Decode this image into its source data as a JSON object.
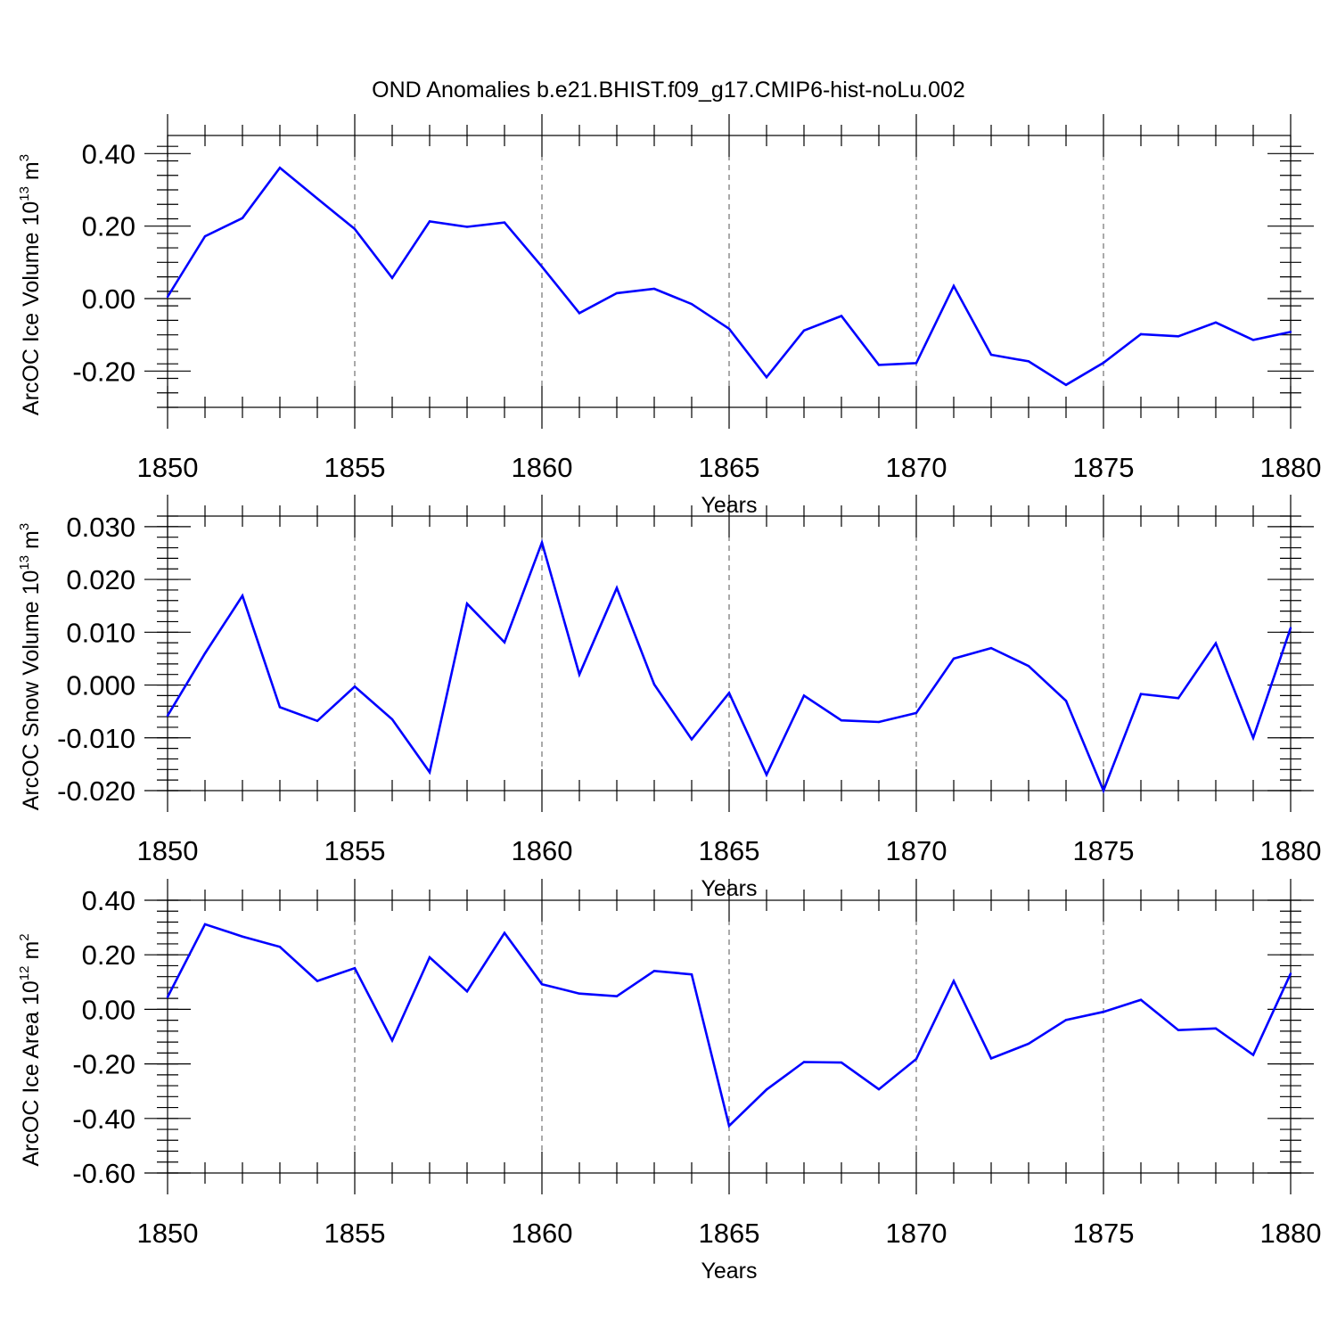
{
  "figure": {
    "title": "OND Anomalies b.e21.BHIST.f09_g17.CMIP6-hist-noLu.002"
  },
  "chart_data": [
    {
      "type": "line",
      "name": "ice-volume",
      "title": "OND Anomalies b.e21.BHIST.f09_g17.CMIP6-hist-noLu.002",
      "xlabel": "Years",
      "ylabel": {
        "text": "ArcOC Ice Volume 10",
        "exp": "13",
        "unit": " m",
        "unit_exp": "3"
      },
      "xlim": [
        1850,
        1880
      ],
      "ylim": [
        -0.3,
        0.45
      ],
      "x_major_ticks": [
        1850,
        1855,
        1860,
        1865,
        1870,
        1875,
        1880
      ],
      "x_tick_labels": [
        "1850",
        "1855",
        "1860",
        "1865",
        "1870",
        "1875",
        "1880"
      ],
      "y_major_ticks": [
        -0.2,
        0.0,
        0.2,
        0.4
      ],
      "y_tick_labels": [
        "-0.20",
        "0.00",
        "0.20",
        "0.40"
      ],
      "y_minor_step": 0.04,
      "grid": "vertical dashed at major x ticks",
      "series": [
        {
          "name": "ArcOC Ice Volume",
          "color": "#0000ff",
          "x": [
            1850,
            1851,
            1852,
            1853,
            1854,
            1855,
            1856,
            1857,
            1858,
            1859,
            1860,
            1861,
            1862,
            1863,
            1864,
            1865,
            1866,
            1867,
            1868,
            1869,
            1870,
            1871,
            1872,
            1873,
            1874,
            1875,
            1876,
            1877,
            1878,
            1879,
            1880
          ],
          "values": [
            0.005,
            0.172,
            0.222,
            0.361,
            0.276,
            0.192,
            0.057,
            0.213,
            0.198,
            0.21,
            0.088,
            -0.04,
            0.015,
            0.027,
            -0.015,
            -0.083,
            -0.217,
            -0.088,
            -0.048,
            -0.183,
            -0.178,
            0.035,
            -0.155,
            -0.173,
            -0.238,
            -0.177,
            -0.098,
            -0.104,
            -0.066,
            -0.114,
            -0.092
          ]
        }
      ]
    },
    {
      "type": "line",
      "name": "snow-volume",
      "xlabel": "Years",
      "ylabel": {
        "text": "ArcOC Snow Volume 10",
        "exp": "13",
        "unit": " m",
        "unit_exp": "3"
      },
      "xlim": [
        1850,
        1880
      ],
      "ylim": [
        -0.02,
        0.032
      ],
      "x_major_ticks": [
        1850,
        1855,
        1860,
        1865,
        1870,
        1875,
        1880
      ],
      "x_tick_labels": [
        "1850",
        "1855",
        "1860",
        "1865",
        "1870",
        "1875",
        "1880"
      ],
      "y_major_ticks": [
        -0.02,
        -0.01,
        0.0,
        0.01,
        0.02,
        0.03
      ],
      "y_tick_labels": [
        "-0.020",
        "-0.010",
        "0.000",
        "0.010",
        "0.020",
        "0.030"
      ],
      "y_minor_step": 0.002,
      "grid": "vertical dashed at major x ticks",
      "series": [
        {
          "name": "ArcOC Snow Volume",
          "color": "#0000ff",
          "x": [
            1850,
            1851,
            1852,
            1853,
            1854,
            1855,
            1856,
            1857,
            1858,
            1859,
            1860,
            1861,
            1862,
            1863,
            1864,
            1865,
            1866,
            1867,
            1868,
            1869,
            1870,
            1871,
            1872,
            1873,
            1874,
            1875,
            1876,
            1877,
            1878,
            1879,
            1880
          ],
          "values": [
            -0.0058,
            0.006,
            0.0169,
            -0.0042,
            -0.0068,
            -0.0003,
            -0.0065,
            -0.0165,
            0.0154,
            0.0081,
            0.027,
            0.002,
            0.0184,
            0.0001,
            -0.0103,
            -0.0015,
            -0.017,
            -0.002,
            -0.0067,
            -0.007,
            -0.0053,
            0.005,
            0.007,
            0.0036,
            -0.003,
            -0.02,
            -0.0017,
            -0.0025,
            0.0079,
            -0.01,
            0.0108
          ]
        }
      ]
    },
    {
      "type": "line",
      "name": "ice-area",
      "xlabel": "Years",
      "ylabel": {
        "text": "ArcOC Ice Area 10",
        "exp": "12",
        "unit": " m",
        "unit_exp": "2"
      },
      "xlim": [
        1850,
        1880
      ],
      "ylim": [
        -0.6,
        0.4
      ],
      "x_major_ticks": [
        1850,
        1855,
        1860,
        1865,
        1870,
        1875,
        1880
      ],
      "x_tick_labels": [
        "1850",
        "1855",
        "1860",
        "1865",
        "1870",
        "1875",
        "1880"
      ],
      "y_major_ticks": [
        -0.6,
        -0.4,
        -0.2,
        0.0,
        0.2,
        0.4
      ],
      "y_tick_labels": [
        "-0.60",
        "-0.40",
        "-0.20",
        "0.00",
        "0.20",
        "0.40"
      ],
      "y_minor_step": 0.04,
      "grid": "vertical dashed at major x ticks",
      "series": [
        {
          "name": "ArcOC Ice Area",
          "color": "#0000ff",
          "x": [
            1850,
            1851,
            1852,
            1853,
            1854,
            1855,
            1856,
            1857,
            1858,
            1859,
            1860,
            1861,
            1862,
            1863,
            1864,
            1865,
            1866,
            1867,
            1868,
            1869,
            1870,
            1871,
            1872,
            1873,
            1874,
            1875,
            1876,
            1877,
            1878,
            1879,
            1880
          ],
          "values": [
            0.045,
            0.312,
            0.267,
            0.229,
            0.104,
            0.151,
            -0.114,
            0.191,
            0.066,
            0.28,
            0.092,
            0.058,
            0.048,
            0.141,
            0.128,
            -0.427,
            -0.294,
            -0.193,
            -0.195,
            -0.293,
            -0.182,
            0.104,
            -0.18,
            -0.126,
            -0.039,
            -0.009,
            0.035,
            -0.076,
            -0.07,
            -0.167,
            0.131
          ]
        }
      ]
    }
  ]
}
